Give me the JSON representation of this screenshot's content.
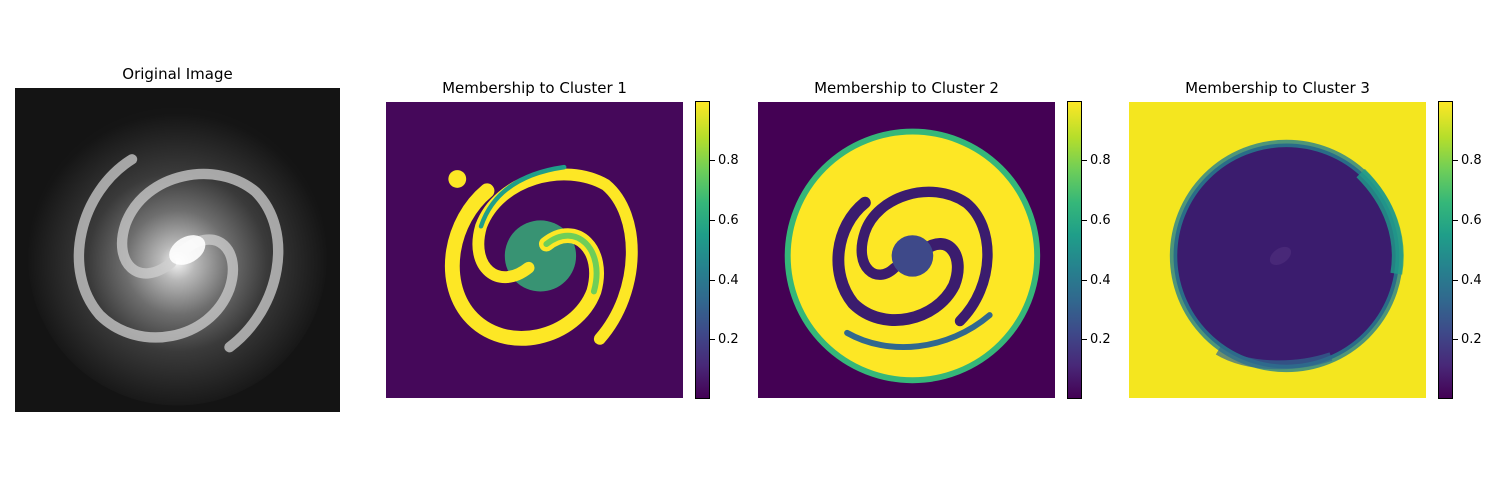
{
  "panels": [
    {
      "title": "Original Image"
    },
    {
      "title": "Membership to Cluster 1"
    },
    {
      "title": "Membership to Cluster 2"
    },
    {
      "title": "Membership to Cluster 3"
    }
  ],
  "colormap": [
    "#440154",
    "#482878",
    "#3e4989",
    "#31688e",
    "#26828e",
    "#1f9e89",
    "#35b779",
    "#6ece58",
    "#b5de2b",
    "#fde725"
  ],
  "chart_data": [
    {
      "type": "heatmap",
      "title": "Original Image",
      "colormap": "gray"
    },
    {
      "type": "heatmap",
      "title": "Membership to Cluster 1",
      "colormap": "viridis",
      "colorbar": {
        "range": [
          0,
          1
        ],
        "ticks": [
          0.2,
          0.4,
          0.6,
          0.8
        ],
        "tick_labels": [
          "0.2",
          "0.4",
          "0.6",
          "0.8"
        ]
      }
    },
    {
      "type": "heatmap",
      "title": "Membership to Cluster 2",
      "colormap": "viridis",
      "colorbar": {
        "range": [
          0,
          1
        ],
        "ticks": [
          0.2,
          0.4,
          0.6,
          0.8
        ],
        "tick_labels": [
          "0.2",
          "0.4",
          "0.6",
          "0.8"
        ]
      }
    },
    {
      "type": "heatmap",
      "title": "Membership to Cluster 3",
      "colormap": "viridis",
      "colorbar": {
        "range": [
          0,
          1
        ],
        "ticks": [
          0.2,
          0.4,
          0.6,
          0.8
        ],
        "tick_labels": [
          "0.2",
          "0.4",
          "0.6",
          "0.8"
        ]
      }
    }
  ]
}
